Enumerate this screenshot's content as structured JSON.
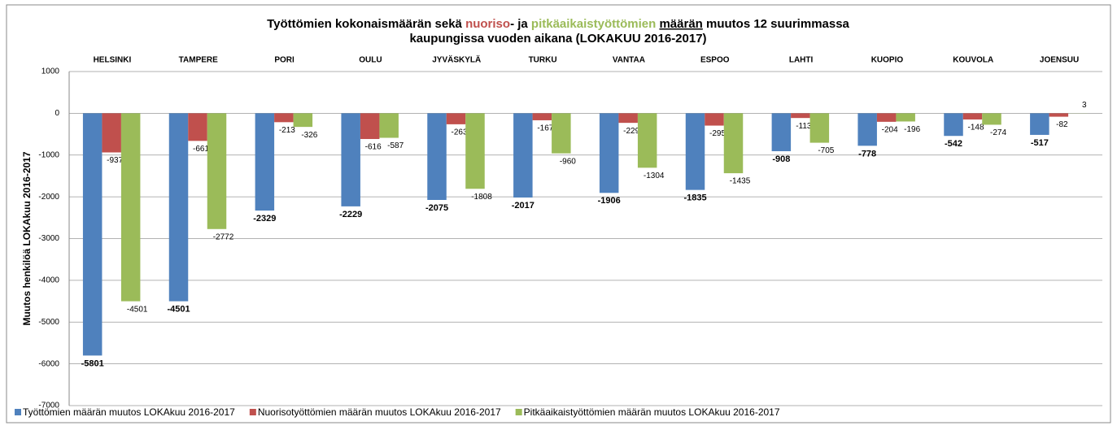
{
  "chart_data": {
    "type": "bar",
    "title_lines": [
      [
        {
          "text": "Työttömien kokonaismäärän sekä "
        },
        {
          "text": "nuoriso",
          "color": "#c0504d"
        },
        {
          "text": "- ja "
        },
        {
          "text": "pitkäaikaistyöttömien ",
          "color": "#9bbb59"
        },
        {
          "text": "määrän",
          "underline": true
        },
        {
          "text": " muutos 12 suurimmassa"
        }
      ],
      [
        {
          "text": "kaupungissa vuoden aikana (LOKAKUU 2016-2017)"
        }
      ]
    ],
    "y_label": "Muutos henkilöä LOKAkuu 2016-2017",
    "categories": [
      "HELSINKI",
      "TAMPERE",
      "PORI",
      "OULU",
      "JYVÄSKYLÄ",
      "TURKU",
      "VANTAA",
      "ESPOO",
      "LAHTI",
      "KUOPIO",
      "KOUVOLA",
      "JOENSUU"
    ],
    "series": [
      {
        "name": "Työttömien määrän muutos LOKAkuu 2016-2017",
        "color": "#4f81bd",
        "label_bold": true,
        "values": [
          -5801,
          -4501,
          -2329,
          -2229,
          -2075,
          -2017,
          -1906,
          -1835,
          -908,
          -778,
          -542,
          -517
        ]
      },
      {
        "name": "Nuorisotyöttömien määrän muutos LOKAkuu 2016-2017",
        "color": "#c0504d",
        "label_bold": false,
        "values": [
          -937,
          -661,
          -213,
          -616,
          -263,
          -167,
          -229,
          -295,
          -113,
          -204,
          -148,
          -82
        ]
      },
      {
        "name": "Pitkäaikaistyöttömien määrän muutos LOKAkuu 2016-2017",
        "color": "#9bbb59",
        "label_bold": false,
        "values": [
          -4501,
          -2772,
          -326,
          -587,
          -1808,
          -960,
          -1304,
          -1435,
          -705,
          -196,
          -274,
          3
        ]
      }
    ],
    "ylim": [
      -7000,
      1000
    ],
    "yticks": [
      -7000,
      -6000,
      -5000,
      -4000,
      -3000,
      -2000,
      -1000,
      0,
      1000
    ],
    "grid": true,
    "legend": "bottom"
  }
}
